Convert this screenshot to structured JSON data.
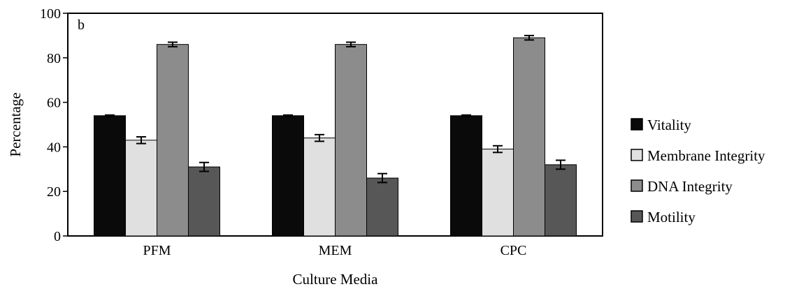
{
  "chart_data": {
    "type": "bar",
    "panel_label": "b",
    "xlabel": "Culture Media",
    "ylabel": "Percentage",
    "ylim": [
      0,
      100
    ],
    "yticks": [
      0,
      20,
      40,
      60,
      80,
      100
    ],
    "categories": [
      "PFM",
      "MEM",
      "CPC"
    ],
    "grid": false,
    "legend_position": "right",
    "series": [
      {
        "name": "Vitality",
        "color": "#0a0a0a",
        "values": [
          54,
          54,
          54
        ],
        "errors": [
          0.3,
          0.3,
          0.3
        ]
      },
      {
        "name": "Membrane Integrity",
        "color": "#e0e0e0",
        "values": [
          43,
          44,
          39
        ],
        "errors": [
          1.5,
          1.5,
          1.5
        ]
      },
      {
        "name": "DNA Integrity",
        "color": "#8c8c8c",
        "values": [
          86,
          86,
          89
        ],
        "errors": [
          1.0,
          1.0,
          1.0
        ]
      },
      {
        "name": "Motility",
        "color": "#575757",
        "values": [
          31,
          26,
          32
        ],
        "errors": [
          2.0,
          2.0,
          2.0
        ]
      }
    ]
  }
}
